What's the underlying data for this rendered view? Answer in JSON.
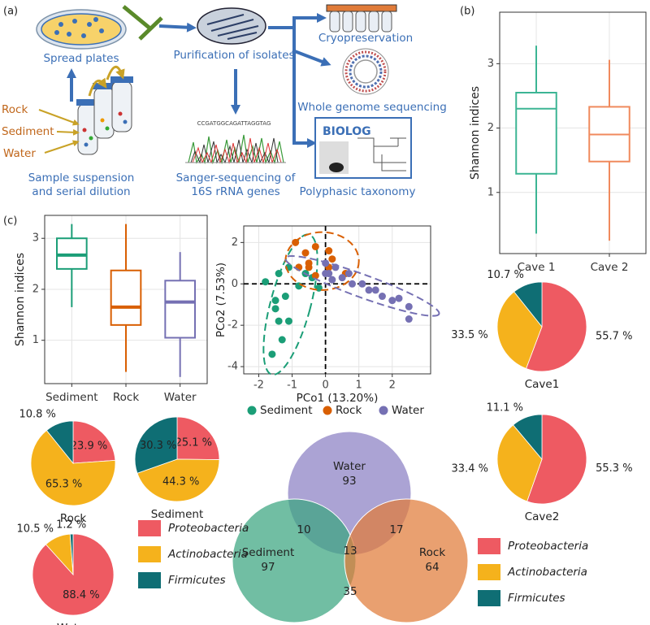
{
  "panel_labels": [
    "(a)",
    "(b)",
    "(c)"
  ],
  "workflow": {
    "spread_plates": "Spread plates",
    "purification": "Purification of isolates",
    "cryopreservation": "Cryopreservation",
    "wgs": "Whole genome sequencing",
    "polyphasic": "Polyphasic taxonomy",
    "biolog": "BIOLOG",
    "chromatogram": "CCGATGGCAGATTAGGTAG",
    "sanger": [
      "Sanger-sequencing of",
      "16S rRNA genes"
    ],
    "sample": [
      "Sample suspension",
      "and serial dilution"
    ],
    "sources": [
      "Rock",
      "Sediment",
      "Water"
    ]
  },
  "legends": [
    {
      "items": [
        {
          "name": "Proteobacteria",
          "color": "#ee5a62"
        },
        {
          "name": "Actinobacteria",
          "color": "#f5b21c"
        },
        {
          "name": "Firmicutes",
          "color": "#0f6e74"
        }
      ]
    },
    {
      "items": [
        {
          "name": "Proteobacteria",
          "color": "#ee5a62"
        },
        {
          "name": "Actinobacteria",
          "color": "#f5b21c"
        },
        {
          "name": "Firmicutes",
          "color": "#0f6e74"
        }
      ]
    }
  ],
  "chart_data": [
    {
      "type": "box",
      "ylabel": "Shannon indices",
      "categories": [
        "Cave 1",
        "Cave 2"
      ],
      "colors": [
        "#3cb594",
        "#f08a5d"
      ],
      "boxes": [
        {
          "min": 0.36,
          "q1": 1.29,
          "median": 2.3,
          "q3": 2.55,
          "max": 3.28
        },
        {
          "min": 0.25,
          "q1": 1.48,
          "median": 1.9,
          "q3": 2.33,
          "max": 3.06
        }
      ],
      "ylim": [
        0.05,
        3.8
      ],
      "yticks": [
        1,
        2,
        3
      ],
      "grid": true
    },
    {
      "type": "pie",
      "title": "Cave1",
      "values": [
        55.7,
        33.5,
        10.7
      ],
      "value_labels": [
        "55.7 %",
        "33.5 %",
        "10.7 %"
      ],
      "colors": [
        "#ee5a62",
        "#f5b21c",
        "#0f6e74"
      ],
      "label_position": "outside"
    },
    {
      "type": "pie",
      "title": "Cave2",
      "values": [
        55.3,
        33.4,
        11.1
      ],
      "value_labels": [
        "55.3 %",
        "33.4 %",
        "11.1 %"
      ],
      "colors": [
        "#ee5a62",
        "#f5b21c",
        "#0f6e74"
      ],
      "label_position": "outside"
    },
    {
      "type": "box",
      "ylabel": "Shannon indices",
      "categories": [
        "Sediment",
        "Rock",
        "Water"
      ],
      "colors": [
        "#1b9e77",
        "#d95f02",
        "#7570b3"
      ],
      "boxes": [
        {
          "min": 1.65,
          "q1": 2.4,
          "median": 2.67,
          "q3": 3.0,
          "max": 3.28
        },
        {
          "min": 0.38,
          "q1": 1.3,
          "median": 1.65,
          "q3": 2.37,
          "max": 3.28
        },
        {
          "min": 0.28,
          "q1": 1.05,
          "median": 1.75,
          "q3": 2.17,
          "max": 2.73
        }
      ],
      "ylim": [
        0.15,
        3.45
      ],
      "yticks": [
        1,
        2,
        3
      ],
      "grid": true
    },
    {
      "type": "scatter",
      "xlabel": "PCo1 (13.20%)",
      "ylabel": "PCo2 (7.53%)",
      "xlim": [
        -2.45,
        3.15
      ],
      "xticks": [
        -2,
        -1,
        0,
        1,
        2
      ],
      "ylim": [
        -4.35,
        2.8
      ],
      "yticks": [
        -4,
        -2,
        0,
        2
      ],
      "grid": true,
      "reflines": {
        "x": 0,
        "y": 0
      },
      "series": [
        {
          "name": "Sediment",
          "color": "#1b9e77",
          "x": [
            -1.6,
            -1.3,
            -1.4,
            -1.1,
            -1.5,
            -1.2,
            -1.5,
            -1.8,
            -1.1,
            -0.8,
            -0.6,
            -1.4,
            -0.2,
            -0.4
          ],
          "y": [
            -3.4,
            -2.7,
            -1.8,
            -1.8,
            -1.2,
            -0.6,
            -0.8,
            0.1,
            0.8,
            -0.1,
            0.5,
            0.5,
            -0.2,
            0.3
          ],
          "ellipse": {
            "cx": -1.05,
            "cy": -1.0,
            "rx": 0.6,
            "ry": 3.5,
            "angle": 15
          }
        },
        {
          "name": "Rock",
          "color": "#d95f02",
          "x": [
            -0.9,
            -0.6,
            -0.3,
            0.1,
            -0.5,
            -0.3,
            -0.8,
            0.2,
            0.6,
            -0.5,
            0.1
          ],
          "y": [
            2.0,
            1.5,
            1.8,
            1.6,
            1.0,
            0.4,
            0.8,
            1.2,
            0.5,
            0.8,
            0.8
          ],
          "ellipse": {
            "cx": -0.1,
            "cy": 1.1,
            "rx": 1.1,
            "ry": 1.4,
            "angle": 0
          }
        },
        {
          "name": "Water",
          "color": "#7570b3",
          "x": [
            0.0,
            0.1,
            0.3,
            0.5,
            0.7,
            0.8,
            1.1,
            1.3,
            1.5,
            1.7,
            2.0,
            2.2,
            2.5,
            2.5,
            0.2,
            0.0
          ],
          "y": [
            1.0,
            0.5,
            0.8,
            0.3,
            0.5,
            0.0,
            0.0,
            -0.3,
            -0.3,
            -0.6,
            -0.8,
            -0.7,
            -1.7,
            -1.1,
            0.2,
            0.5
          ],
          "ellipse": {
            "cx": 1.1,
            "cy": -0.1,
            "rx": 2.45,
            "ry": 0.55,
            "angle": 20
          }
        }
      ]
    },
    {
      "type": "pie",
      "title": "Rock",
      "values": [
        23.9,
        65.3,
        10.8
      ],
      "value_labels": [
        "23.9 %",
        "65.3 %",
        "10.8 %"
      ],
      "colors": [
        "#ee5a62",
        "#f5b21c",
        "#0f6e74"
      ],
      "label_position": "auto"
    },
    {
      "type": "pie",
      "title": "Sediment",
      "values": [
        25.1,
        44.3,
        30.3
      ],
      "value_labels": [
        "25.1 %",
        "44.3 %",
        "30.3 %"
      ],
      "colors": [
        "#ee5a62",
        "#f5b21c",
        "#0f6e74"
      ],
      "label_position": "auto"
    },
    {
      "type": "pie",
      "title": "Water",
      "values": [
        88.4,
        10.5,
        1.2
      ],
      "value_labels": [
        "88.4 %",
        "10.5 %",
        "1.2 %"
      ],
      "colors": [
        "#ee5a62",
        "#f5b21c",
        "#0f6e74"
      ],
      "label_position": "auto"
    },
    {
      "type": "venn",
      "sets": [
        {
          "name": "Water",
          "count": 93,
          "color": "#8a80c4"
        },
        {
          "name": "Sediment",
          "count": 97,
          "color": "#3aa57f"
        },
        {
          "name": "Rock",
          "count": 64,
          "color": "#e07b39"
        }
      ],
      "overlaps": [
        {
          "sets": [
            "Water",
            "Sediment"
          ],
          "count": 10
        },
        {
          "sets": [
            "Water",
            "Rock"
          ],
          "count": 17
        },
        {
          "sets": [
            "Water",
            "Sediment",
            "Rock"
          ],
          "count": 13
        },
        {
          "sets": [
            "Sediment",
            "Rock"
          ],
          "count": 35
        }
      ]
    }
  ]
}
